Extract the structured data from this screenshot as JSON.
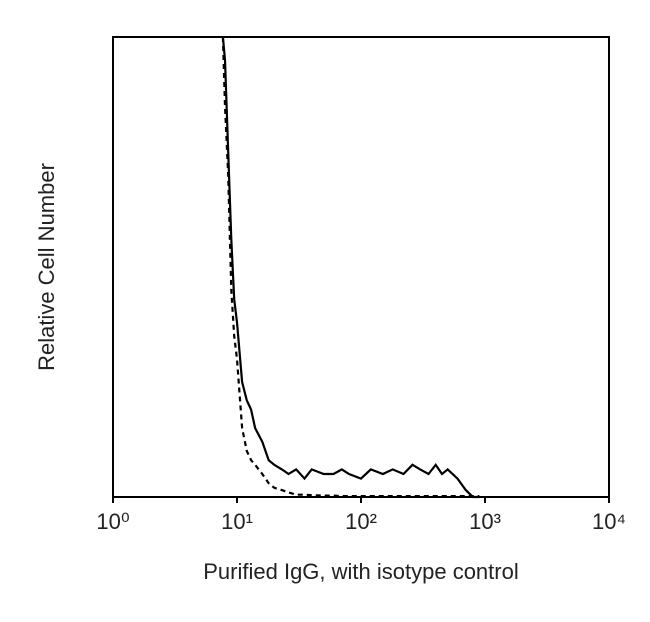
{
  "chart_data": {
    "type": "line",
    "xlabel": "Purified IgG, with isotype control",
    "ylabel": "Relative Cell Number",
    "xscale": "log",
    "x": [
      7.7,
      8,
      8.5,
      9,
      9.5,
      10,
      11,
      12,
      13,
      14,
      16,
      18,
      20,
      23,
      26,
      30,
      35,
      40,
      50,
      60,
      70,
      80,
      100,
      120,
      150,
      180,
      220,
      260,
      300,
      350,
      400,
      450,
      500,
      600,
      700,
      800,
      900
    ],
    "series": [
      {
        "color": "#000000",
        "line_style": "solid",
        "values": [
          100,
          95,
          75,
          56,
          43,
          38,
          25,
          21,
          19,
          15,
          12,
          8,
          7,
          6,
          5,
          6,
          4,
          6,
          5,
          5,
          6,
          5,
          4,
          6,
          5,
          6,
          5,
          7,
          6,
          5,
          7,
          5,
          6,
          4,
          1.5,
          0,
          0
        ]
      },
      {
        "color": "#000000",
        "line_style": "dashed",
        "values": [
          100,
          85,
          70,
          45,
          35,
          30,
          15,
          10,
          8,
          7,
          5,
          3,
          2,
          1.5,
          1,
          0.5,
          0.5,
          0.4,
          0.3,
          0.3,
          0.2,
          0.2,
          0.2,
          0.2,
          0.2,
          0.2,
          0.2,
          0.2,
          0.2,
          0.2,
          0.2,
          0.2,
          0.2,
          0.2,
          0.2,
          0.2,
          0.2
        ]
      }
    ],
    "xlim": [
      1,
      10000
    ],
    "ylim": [
      0,
      100
    ],
    "xticks": [
      {
        "value": 1,
        "label": "10⁰"
      },
      {
        "value": 10,
        "label": "10¹"
      },
      {
        "value": 100,
        "label": "10²"
      },
      {
        "value": 1000,
        "label": "10³"
      },
      {
        "value": 10000,
        "label": "10⁴"
      }
    ]
  }
}
